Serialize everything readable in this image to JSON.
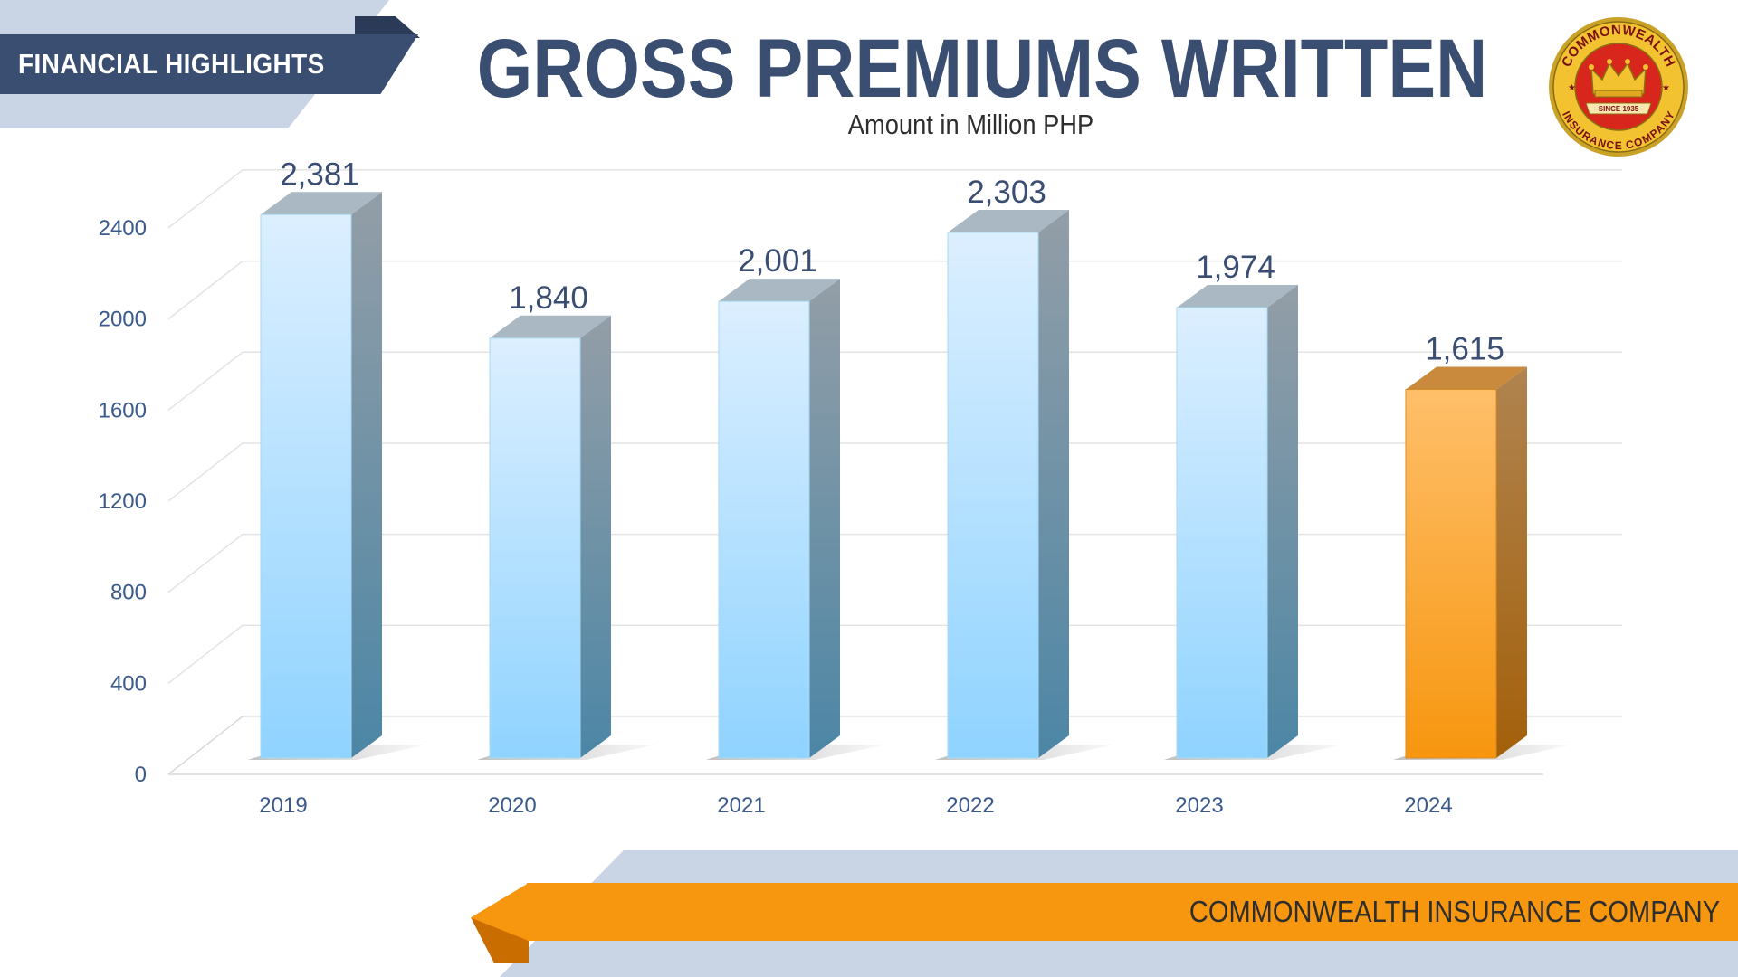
{
  "header": {
    "section_label": "FINANCIAL HIGHLIGHTS",
    "title": "GROSS PREMIUMS WRITTEN",
    "subtitle": "Amount in Million PHP"
  },
  "logo": {
    "icon": "crown-seal-icon",
    "top_text": "COMMONWEALTH",
    "bottom_text": "INSURANCE COMPANY",
    "ribbon_text": "SINCE 1935",
    "colors": {
      "ring": "#f2c230",
      "face": "#d9261c"
    }
  },
  "chart_data": {
    "type": "bar",
    "title": "GROSS PREMIUMS WRITTEN",
    "subtitle": "Amount in Million PHP",
    "categories": [
      "2019",
      "2020",
      "2021",
      "2022",
      "2023",
      "2024"
    ],
    "values": [
      2381,
      1840,
      2001,
      2303,
      1974,
      1615
    ],
    "data_labels": [
      "2,381",
      "1,840",
      "2,001",
      "2,303",
      "1,974",
      "1,615"
    ],
    "yticks": [
      0,
      400,
      800,
      1200,
      1600,
      2000,
      2400
    ],
    "ylim": [
      0,
      2600
    ],
    "grid": true,
    "style": "3d-columns",
    "colors": {
      "bar": "#8fd3ff",
      "highlight_bar": "#f7960f",
      "highlight_category": "2024"
    }
  },
  "footer": {
    "company": "COMMONWEALTH INSURANCE COMPANY"
  }
}
